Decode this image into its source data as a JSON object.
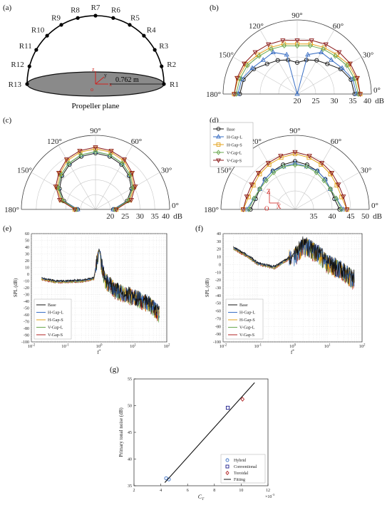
{
  "figure": {
    "panel_labels": [
      "(a)",
      "(b)",
      "(c)",
      "(d)",
      "(e)",
      "(f)",
      "(g)"
    ],
    "panel_a": {
      "receivers": [
        "R1",
        "R2",
        "R3",
        "R4",
        "R5",
        "R6",
        "R7",
        "R8",
        "R9",
        "R10",
        "R11",
        "R12",
        "R13"
      ],
      "radius_text": "0.762 m",
      "plane_caption": "Propeller plane",
      "axis_letters": [
        "z",
        "y",
        "x",
        "o"
      ]
    }
  },
  "chart_data": [
    {
      "panel": "(b)",
      "type": "polar",
      "angle_tick_labels": [
        "0°",
        "30°",
        "60°",
        "90°",
        "120°",
        "150°",
        "180°"
      ],
      "radial_tick_labels": [
        "20",
        "25",
        "30",
        "35",
        "40"
      ],
      "radial_unit": "dB",
      "rlim": [
        20,
        40
      ],
      "angles_deg": [
        0,
        15,
        30,
        45,
        60,
        75,
        90,
        105,
        120,
        135,
        150,
        165,
        180
      ],
      "series": [
        {
          "name": "Base",
          "color": "#1a1a1a",
          "marker": "circle",
          "values": [
            35.5,
            35,
            33.5,
            31.5,
            30.5,
            29.5,
            28.5,
            29.5,
            30.5,
            31.5,
            33.5,
            35,
            35.5
          ]
        },
        {
          "name": "H-Gap-L",
          "color": "#3a6fc4",
          "marker": "triangle",
          "values": [
            36,
            35.5,
            34,
            33,
            33,
            31,
            20,
            31,
            33,
            33,
            34,
            35.5,
            36
          ]
        },
        {
          "name": "H-Gap-S",
          "color": "#e3a21a",
          "marker": "square",
          "values": [
            37,
            36.5,
            36,
            35,
            34.5,
            34,
            33.5,
            34,
            34.5,
            35,
            36,
            36.5,
            37
          ]
        },
        {
          "name": "V-Gap-L",
          "color": "#6aa84f",
          "marker": "diamond",
          "values": [
            36.5,
            36,
            35.5,
            34.5,
            34,
            33.5,
            33,
            33.5,
            34,
            34.5,
            35.5,
            36,
            36.5
          ]
        },
        {
          "name": "V-Gap-S",
          "color": "#8b1a1a",
          "marker": "tri-down",
          "values": [
            37,
            36.8,
            36.5,
            36,
            35.5,
            35,
            34.5,
            35,
            35.5,
            36,
            36.5,
            36.8,
            37
          ]
        }
      ]
    },
    {
      "panel": "(c)",
      "type": "polar",
      "angle_tick_labels": [
        "0°",
        "30°",
        "60°",
        "90°",
        "120°",
        "150°",
        "180°"
      ],
      "radial_tick_labels": [
        "20",
        "25",
        "30",
        "35",
        "40"
      ],
      "radial_unit": "dB",
      "rlim": [
        15,
        40
      ],
      "angles_deg": [
        0,
        15,
        30,
        45,
        60,
        75,
        90,
        105,
        120,
        135,
        150,
        165,
        180
      ],
      "series": [
        {
          "name": "Base",
          "color": "#1a1a1a",
          "marker": "circle",
          "values": [
            21,
            26,
            29,
            31,
            32.5,
            33.5,
            34,
            33.5,
            32.5,
            31,
            29,
            26,
            21
          ]
        },
        {
          "name": "H-Gap-L",
          "color": "#3a6fc4",
          "marker": "triangle",
          "values": [
            21,
            26.5,
            29.5,
            31.5,
            33,
            34,
            34.5,
            34,
            33,
            31.5,
            29.5,
            26.5,
            21
          ]
        },
        {
          "name": "H-Gap-S",
          "color": "#e3a21a",
          "marker": "square",
          "values": [
            22,
            27,
            30,
            32,
            34,
            35,
            35.5,
            35,
            34,
            32,
            30,
            27,
            22
          ]
        },
        {
          "name": "V-Gap-L",
          "color": "#6aa84f",
          "marker": "diamond",
          "values": [
            21.5,
            26.5,
            29.5,
            31.5,
            33,
            34,
            34.5,
            34,
            33,
            31.5,
            29.5,
            26.5,
            21.5
          ]
        },
        {
          "name": "V-Gap-S",
          "color": "#8b1a1a",
          "marker": "tri-down",
          "values": [
            22,
            27.5,
            30.5,
            32.5,
            34.5,
            35.5,
            36,
            35.5,
            34.5,
            32.5,
            30.5,
            27.5,
            22
          ]
        }
      ]
    },
    {
      "panel": "(d)",
      "type": "polar",
      "angle_tick_labels": [
        "0°",
        "30°",
        "60°",
        "90°",
        "120°",
        "150°",
        "180°"
      ],
      "radial_tick_labels": [
        "35",
        "40",
        "45",
        "50"
      ],
      "radial_unit": "dB",
      "rlim": [
        30,
        50
      ],
      "inset_axis_letters": [
        "Z",
        "X",
        "O"
      ],
      "angles_deg": [
        0,
        15,
        30,
        45,
        60,
        75,
        90,
        105,
        120,
        135,
        150,
        165,
        180
      ],
      "series": [
        {
          "name": "Base",
          "color": "#1a1a1a",
          "marker": "circle",
          "values": [
            42,
            41,
            41,
            41.5,
            42,
            42.5,
            43,
            42.5,
            42,
            41.5,
            41,
            41,
            42
          ]
        },
        {
          "name": "H-Gap-L",
          "color": "#3a6fc4",
          "marker": "triangle",
          "values": [
            43,
            41.5,
            41,
            41.5,
            42,
            42,
            42.5,
            42,
            42,
            41.5,
            41,
            41.5,
            43
          ]
        },
        {
          "name": "H-Gap-S",
          "color": "#e3a21a",
          "marker": "square",
          "values": [
            44,
            43,
            43,
            43.5,
            44,
            44.5,
            45,
            44.5,
            44,
            43.5,
            43,
            43,
            44
          ]
        },
        {
          "name": "V-Gap-L",
          "color": "#6aa84f",
          "marker": "diamond",
          "values": [
            42.5,
            41.5,
            41,
            41,
            41.5,
            42,
            42,
            42,
            41.5,
            41,
            41,
            41.5,
            42.5
          ]
        },
        {
          "name": "V-Gap-S",
          "color": "#8b1a1a",
          "marker": "tri-down",
          "values": [
            44,
            43.5,
            43.5,
            44,
            44.5,
            45,
            45.5,
            45,
            44.5,
            44,
            43.5,
            43.5,
            44
          ]
        }
      ]
    },
    {
      "panel": "(e)",
      "type": "line",
      "xscale": "log",
      "xlim": [
        0.01,
        100
      ],
      "ylim": [
        -100,
        60
      ],
      "ylabel": "SPL (dB)",
      "xlabel": "f*",
      "x_tick_labels": [
        "10^-2",
        "10^-1",
        "10^0",
        "10^1",
        "10^2"
      ],
      "y_tick_labels": [
        "60",
        "50",
        "40",
        "30",
        "20",
        "10",
        "0",
        "-10",
        "-20",
        "-30",
        "-40",
        "-50",
        "-60",
        "-70",
        "-80",
        "-90",
        "-100"
      ],
      "legend": [
        "Base",
        "H-Gap-L",
        "H-Gap-S",
        "V-Gap-L",
        "V-Gap-S"
      ],
      "series_colors": [
        "#111111",
        "#3a6fc4",
        "#e3a21a",
        "#6aa84f",
        "#b22222"
      ],
      "envelope": {
        "x": [
          0.02,
          0.05,
          0.1,
          0.3,
          0.7,
          1,
          1.5,
          3,
          10,
          30,
          60
        ],
        "y": [
          -8,
          -12,
          -12,
          -11,
          -8,
          36,
          -5,
          -20,
          -30,
          -40,
          -55
        ]
      }
    },
    {
      "panel": "(f)",
      "type": "line",
      "xscale": "log",
      "xlim": [
        0.01,
        100
      ],
      "ylim": [
        -100,
        40
      ],
      "ylabel": "SPL (dB)",
      "xlabel": "f*",
      "x_tick_labels": [
        "10^-2",
        "10^-1",
        "10^0",
        "10^1",
        "10^2"
      ],
      "y_tick_labels": [
        "40",
        "30",
        "20",
        "10",
        "0",
        "-10",
        "-20",
        "-30",
        "-40",
        "-50",
        "-60",
        "-70",
        "-80",
        "-90",
        "-100"
      ],
      "legend": [
        "Base",
        "H-Gap-L",
        "H-Gap-S",
        "V-Gap-L",
        "V-Gap-S"
      ],
      "series_colors": [
        "#111111",
        "#3a6fc4",
        "#e3a21a",
        "#6aa84f",
        "#b22222"
      ],
      "envelope": {
        "x": [
          0.02,
          0.05,
          0.1,
          0.3,
          1,
          2,
          5,
          10,
          30,
          50
        ],
        "y": [
          20,
          10,
          0,
          -5,
          10,
          28,
          20,
          5,
          -5,
          -15
        ]
      }
    },
    {
      "panel": "(g)",
      "type": "scatter",
      "xlabel": "C_T",
      "ylabel": "Primary tonal noise (dB)",
      "x_multiplier": "×10^-3",
      "xlim": [
        2,
        12
      ],
      "ylim": [
        35,
        55
      ],
      "x_tick_labels": [
        "2",
        "4",
        "6",
        "8",
        "10",
        "12"
      ],
      "y_tick_labels": [
        "35",
        "40",
        "45",
        "50",
        "55"
      ],
      "series": [
        {
          "name": "Hybrid",
          "color": "#3a6fc4",
          "marker": "circle",
          "x": [
            4.4,
            4.6
          ],
          "y": [
            36.4,
            36.2
          ]
        },
        {
          "name": "Conventional",
          "color": "#1a1a8a",
          "marker": "square",
          "x": [
            9.0
          ],
          "y": [
            49.6
          ]
        },
        {
          "name": "Toroidal",
          "color": "#b22222",
          "marker": "diamond",
          "x": [
            10.1
          ],
          "y": [
            51.2
          ]
        },
        {
          "name": "Fitting",
          "color": "#111111",
          "marker": "line",
          "x": [
            4.3,
            11.0
          ],
          "y": [
            35.6,
            54.3
          ]
        }
      ]
    }
  ]
}
